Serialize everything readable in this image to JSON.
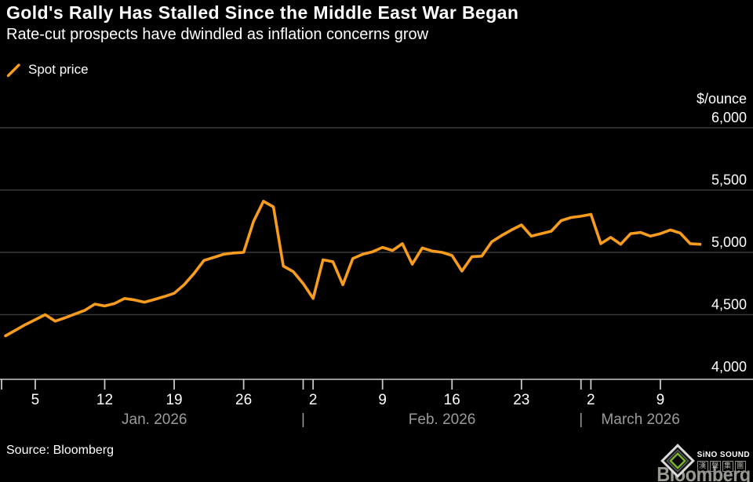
{
  "header": {
    "title": "Gold's Rally Has Stalled Since the Middle East War Began",
    "subtitle": "Rate-cut prospects have dwindled as inflation concerns grow"
  },
  "legend": {
    "label": "Spot price"
  },
  "footer": {
    "source": "Source: Bloomberg"
  },
  "branding": {
    "wordmark": "Bloomberg",
    "watermark_brand": "SiNO SOUND",
    "watermark_chinese": [
      "漢",
      "聲",
      "集",
      "團"
    ]
  },
  "colors": {
    "background": "#000000",
    "line": "#F79C1D",
    "grid": "#3B3B3B",
    "axis": "#C9C9C9",
    "tick_label": "#FFFFFF",
    "month_label": "#9B9B9B",
    "y_label": "#FFFFFF"
  },
  "chart_data": {
    "type": "line",
    "title": "Gold's Rally Has Stalled Since the Middle East War Began",
    "subtitle": "Rate-cut prospects have dwindled as inflation concerns grow",
    "unit_label": "$/ounce",
    "ylabel": "$/ounce",
    "xlabel": "",
    "ylim": [
      4000,
      6000
    ],
    "grid": true,
    "legend_position": "top-left",
    "y_ticks": [
      {
        "value": 6000,
        "label": "6,000"
      },
      {
        "value": 5500,
        "label": "5,500"
      },
      {
        "value": 5000,
        "label": "5,000"
      },
      {
        "value": 4500,
        "label": "4,500"
      },
      {
        "value": 4000,
        "label": "4,000"
      }
    ],
    "x_day_ticks": [
      {
        "index": 3,
        "label": "5"
      },
      {
        "index": 10,
        "label": "12"
      },
      {
        "index": 17,
        "label": "19"
      },
      {
        "index": 24,
        "label": "26"
      },
      {
        "index": 31,
        "label": "2"
      },
      {
        "index": 38,
        "label": "9"
      },
      {
        "index": 45,
        "label": "16"
      },
      {
        "index": 52,
        "label": "23"
      },
      {
        "index": 59,
        "label": "2"
      },
      {
        "index": 66,
        "label": "9"
      }
    ],
    "months": [
      {
        "label": "Jan. 2026",
        "start_index": 0,
        "end_index": 30
      },
      {
        "label": "Feb. 2026",
        "start_index": 30,
        "end_index": 58
      },
      {
        "label": "March 2026",
        "start_index": 58,
        "end_index": 70
      }
    ],
    "series": [
      {
        "name": "Spot price",
        "dates": [
          "Jan 2",
          "Jan 3",
          "Jan 4",
          "Jan 5",
          "Jan 6",
          "Jan 7",
          "Jan 8",
          "Jan 9",
          "Jan 10",
          "Jan 11",
          "Jan 12",
          "Jan 13",
          "Jan 14",
          "Jan 15",
          "Jan 16",
          "Jan 17",
          "Jan 18",
          "Jan 19",
          "Jan 20",
          "Jan 21",
          "Jan 22",
          "Jan 23",
          "Jan 24",
          "Jan 25",
          "Jan 26",
          "Jan 27",
          "Jan 28",
          "Jan 29",
          "Jan 30",
          "Jan 31",
          "Feb 1",
          "Feb 2",
          "Feb 3",
          "Feb 4",
          "Feb 5",
          "Feb 6",
          "Feb 7",
          "Feb 8",
          "Feb 9",
          "Feb 10",
          "Feb 11",
          "Feb 12",
          "Feb 13",
          "Feb 14",
          "Feb 15",
          "Feb 16",
          "Feb 17",
          "Feb 18",
          "Feb 19",
          "Feb 20",
          "Feb 21",
          "Feb 22",
          "Feb 23",
          "Feb 24",
          "Feb 25",
          "Feb 26",
          "Feb 27",
          "Feb 28",
          "Mar 1",
          "Mar 2",
          "Mar 3",
          "Mar 4",
          "Mar 5",
          "Mar 6",
          "Mar 7",
          "Mar 8",
          "Mar 9",
          "Mar 10",
          "Mar 11",
          "Mar 12",
          "Mar 13"
        ],
        "values": [
          4330,
          4375,
          4420,
          4460,
          4500,
          4448,
          4475,
          4505,
          4535,
          4585,
          4570,
          4590,
          4630,
          4618,
          4600,
          4622,
          4645,
          4672,
          4740,
          4830,
          4935,
          4960,
          4985,
          4995,
          5000,
          5250,
          5410,
          5365,
          4890,
          4845,
          4750,
          4630,
          4940,
          4925,
          4740,
          4950,
          4985,
          5005,
          5040,
          5015,
          5070,
          4905,
          5035,
          5011,
          5000,
          4975,
          4850,
          4965,
          4970,
          5085,
          5135,
          5180,
          5220,
          5130,
          5150,
          5170,
          5255,
          5280,
          5290,
          5305,
          5070,
          5120,
          5065,
          5150,
          5160,
          5130,
          5150,
          5180,
          5155,
          5070,
          5065
        ]
      }
    ]
  }
}
